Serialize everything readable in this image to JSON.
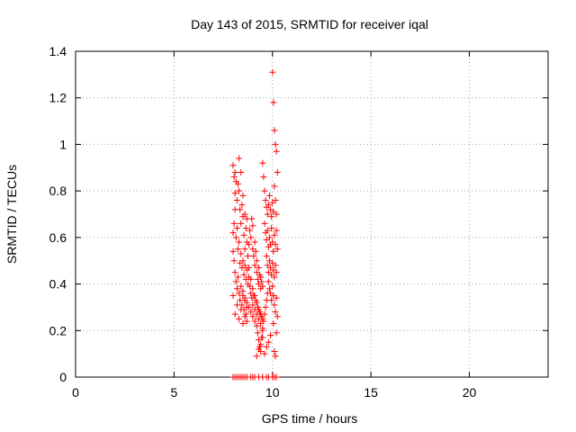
{
  "chart_data": {
    "type": "scatter",
    "title": "Day 143 of 2015, SRMTID for receiver iqal",
    "xlabel": "GPS time / hours",
    "ylabel": "SRMTID / TECUs",
    "xlim": [
      0,
      24
    ],
    "ylim": [
      0,
      1.4
    ],
    "xticks": [
      0,
      5,
      10,
      15,
      20
    ],
    "xtick_labels": [
      "0",
      "5",
      "10",
      "15",
      "20"
    ],
    "yticks": [
      0,
      0.2,
      0.4,
      0.6,
      0.8,
      1,
      1.2,
      1.4
    ],
    "ytick_labels": [
      "0",
      "0.2",
      "0.4",
      "0.6",
      "0.8",
      "1",
      "1.2",
      "1.4"
    ],
    "grid": true,
    "marker": "+",
    "color": "#ff0000",
    "series": [
      {
        "x": [
          8.0,
          8.1,
          8.2,
          8.3,
          8.4,
          8.5,
          8.6,
          8.7,
          8.9,
          9.0,
          9.1,
          9.3,
          9.5,
          9.7,
          9.8,
          10.0,
          10.1,
          10.2,
          8.0,
          8.05,
          8.1,
          8.1,
          8.15,
          8.2,
          8.25,
          8.3,
          8.3,
          8.35,
          8.4,
          8.4,
          8.45,
          8.5,
          8.5,
          8.55,
          8.6,
          8.6,
          8.65,
          8.7,
          8.7,
          8.75,
          8.0,
          8.05,
          8.1,
          8.15,
          8.2,
          8.25,
          8.3,
          8.35,
          8.4,
          8.45,
          8.5,
          8.55,
          8.6,
          8.65,
          8.7,
          8.75,
          8.0,
          8.05,
          8.1,
          8.15,
          8.2,
          8.25,
          8.3,
          8.35,
          8.4,
          8.45,
          8.5,
          8.55,
          8.6,
          8.65,
          8.7,
          8.0,
          8.1,
          8.2,
          8.3,
          8.4,
          8.5,
          8.6,
          8.7,
          8.8,
          8.85,
          8.9,
          8.95,
          9.0,
          9.0,
          9.05,
          9.1,
          9.1,
          9.15,
          9.2,
          9.2,
          9.25,
          9.3,
          9.3,
          9.35,
          9.4,
          9.4,
          9.45,
          9.5,
          8.8,
          8.85,
          8.9,
          8.95,
          9.0,
          9.05,
          9.1,
          9.15,
          9.2,
          9.25,
          9.3,
          9.35,
          9.4,
          9.45,
          9.5,
          8.8,
          8.9,
          9.0,
          9.1,
          9.2,
          9.3,
          9.4,
          9.5,
          9.2,
          9.25,
          9.3,
          9.35,
          9.4,
          9.45,
          9.5,
          9.55,
          9.6,
          9.65,
          9.7,
          9.75,
          9.5,
          9.55,
          9.6,
          9.65,
          9.7,
          9.75,
          9.8,
          9.85,
          9.9,
          9.95,
          10.0,
          10.05,
          10.1,
          10.15,
          10.2,
          9.6,
          9.65,
          9.7,
          9.75,
          9.8,
          9.85,
          9.9,
          9.95,
          10.0,
          10.05,
          10.1,
          10.15,
          10.2,
          10.25,
          9.7,
          9.75,
          9.8,
          9.85,
          9.9,
          9.95,
          10.0,
          10.05,
          10.1,
          10.15,
          10.2,
          9.8,
          9.85,
          9.9,
          9.95,
          10.0,
          10.05,
          10.1,
          10.15,
          10.2,
          10.25,
          10.0,
          10.05,
          10.1,
          10.15,
          10.2,
          10.25,
          10.2,
          10.15,
          10.1,
          10.05,
          9.2,
          9.3,
          9.4,
          9.5,
          9.6,
          9.7,
          9.8,
          9.9,
          8.5,
          8.6,
          8.7,
          8.8,
          8.9,
          9.0,
          9.1
        ],
        "y": [
          0,
          0,
          0,
          0,
          0,
          0,
          0,
          0,
          0,
          0,
          0,
          0,
          0,
          0,
          0,
          0,
          0,
          0,
          0.91,
          0.86,
          0.88,
          0.79,
          0.84,
          0.76,
          0.83,
          0.94,
          0.8,
          0.72,
          0.88,
          0.66,
          0.74,
          0.69,
          0.78,
          0.61,
          0.7,
          0.55,
          0.64,
          0.58,
          0.68,
          0.52,
          0.62,
          0.66,
          0.72,
          0.6,
          0.64,
          0.55,
          0.58,
          0.49,
          0.53,
          0.47,
          0.5,
          0.44,
          0.48,
          0.42,
          0.46,
          0.4,
          0.54,
          0.5,
          0.45,
          0.41,
          0.38,
          0.43,
          0.36,
          0.33,
          0.39,
          0.31,
          0.35,
          0.29,
          0.33,
          0.27,
          0.3,
          0.35,
          0.27,
          0.31,
          0.25,
          0.29,
          0.23,
          0.26,
          0.24,
          0.57,
          0.63,
          0.6,
          0.68,
          0.55,
          0.65,
          0.52,
          0.58,
          0.48,
          0.54,
          0.45,
          0.5,
          0.42,
          0.47,
          0.4,
          0.44,
          0.38,
          0.43,
          0.41,
          0.39,
          0.43,
          0.39,
          0.36,
          0.34,
          0.31,
          0.35,
          0.29,
          0.33,
          0.27,
          0.3,
          0.25,
          0.28,
          0.23,
          0.26,
          0.21,
          0.47,
          0.42,
          0.38,
          0.35,
          0.32,
          0.29,
          0.27,
          0.25,
          0.22,
          0.19,
          0.16,
          0.13,
          0.11,
          0.17,
          0.2,
          0.24,
          0.27,
          0.3,
          0.33,
          0.36,
          0.92,
          0.86,
          0.8,
          0.76,
          0.73,
          0.7,
          0.74,
          0.78,
          0.72,
          0.69,
          0.75,
          0.71,
          0.82,
          0.76,
          0.7,
          0.66,
          0.62,
          0.59,
          0.63,
          0.56,
          0.6,
          0.57,
          0.64,
          0.58,
          0.54,
          0.61,
          0.57,
          0.63,
          0.55,
          0.52,
          0.48,
          0.45,
          0.5,
          0.47,
          0.44,
          0.49,
          0.46,
          0.43,
          0.48,
          0.45,
          0.41,
          0.38,
          0.36,
          0.33,
          0.39,
          0.35,
          0.31,
          0.28,
          0.34,
          0.26,
          1.31,
          1.18,
          1.06,
          1.0,
          0.97,
          0.88,
          0.19,
          0.09,
          0.11,
          0.23,
          0.09,
          0.12,
          0.14,
          0.17,
          0.1,
          0.13,
          0.15,
          0.18,
          0.37,
          0.34,
          0.32,
          0.3,
          0.28,
          0.26,
          0.24
        ]
      }
    ]
  }
}
